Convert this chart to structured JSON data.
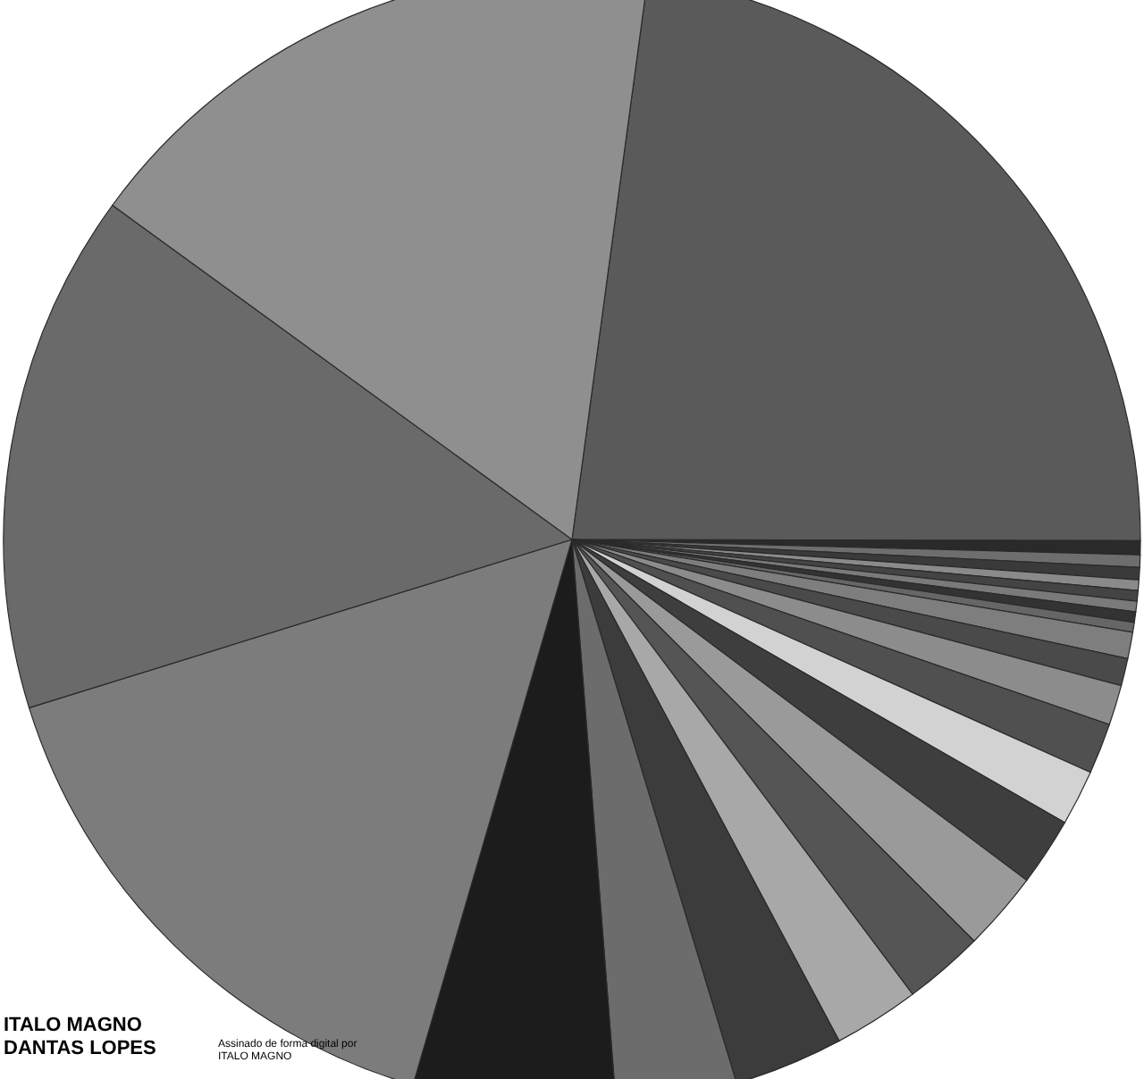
{
  "chart_data": {
    "type": "pie",
    "categories": [
      null,
      null,
      null,
      null,
      null,
      null,
      null,
      null,
      null,
      null,
      null,
      null,
      null,
      null,
      null,
      null,
      null,
      null,
      null,
      null,
      null,
      null,
      null,
      null
    ],
    "values": [
      22.9,
      0.4,
      0.35,
      0.35,
      0.3,
      0.3,
      0.3,
      0.3,
      0.28,
      0.75,
      0.78,
      1.14,
      1.44,
      1.58,
      1.94,
      2.25,
      2.28,
      2.44,
      3.11,
      3.44,
      5.75,
      15.7,
      14.8,
      17.12
    ],
    "colors": [
      "#5a5a5a",
      "#2a2a2a",
      "#6e6e6e",
      "#3a3a3a",
      "#8a8a8a",
      "#444444",
      "#7a7a7a",
      "#333333",
      "#666666",
      "#7e7e7e",
      "#4a4a4a",
      "#8c8c8c",
      "#505050",
      "#d2d2d2",
      "#3e3e3e",
      "#9a9a9a",
      "#555555",
      "#a8a8a8",
      "#3c3c3c",
      "#6c6c6c",
      "#1c1c1c",
      "#7c7c7c",
      "#6a6a6a",
      "#8f8f8f"
    ],
    "annotations": [
      "ITALO MAGNO DANTAS LOPES",
      "Assinado de forma digital por ITALO MAGNO"
    ]
  }
}
